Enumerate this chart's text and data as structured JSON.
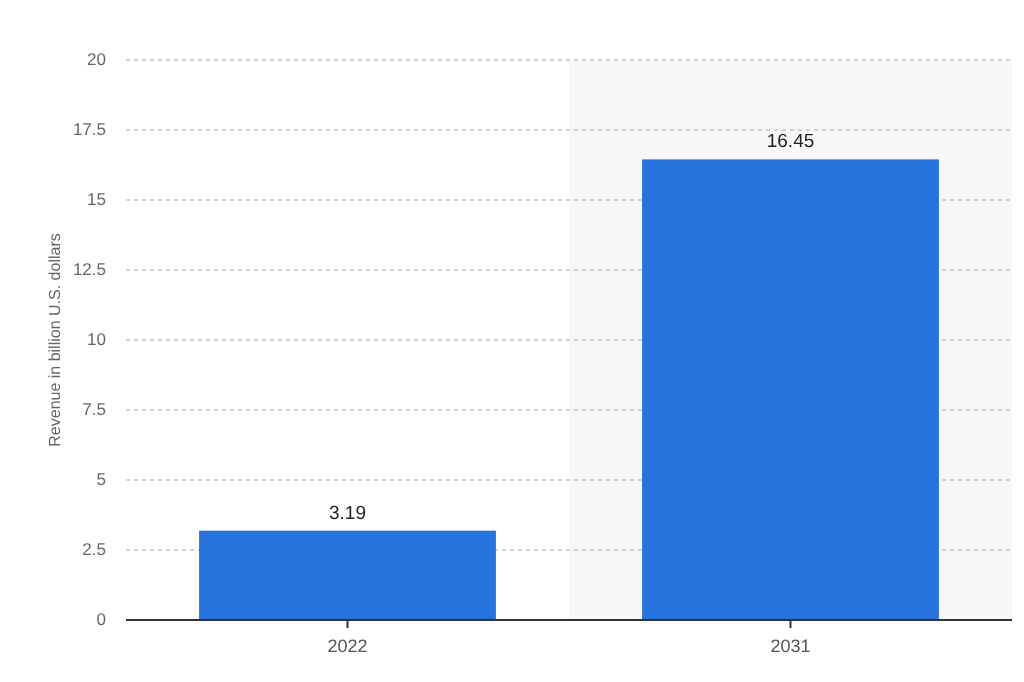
{
  "chart_data": {
    "type": "bar",
    "ylabel": "Revenue in billion U.S. dollars",
    "categories": [
      "2022",
      "2031"
    ],
    "values": [
      3.19,
      16.45
    ],
    "color": "#2673dd",
    "ylim": [
      0,
      20
    ],
    "yticks": [
      0,
      2.5,
      5,
      7.5,
      10,
      12.5,
      15,
      17.5,
      20
    ],
    "grid": "y",
    "data_labels": true,
    "bands": [
      {
        "axis": "x",
        "from": "2031",
        "to": "2031",
        "color": "#f7f7f7"
      }
    ]
  }
}
